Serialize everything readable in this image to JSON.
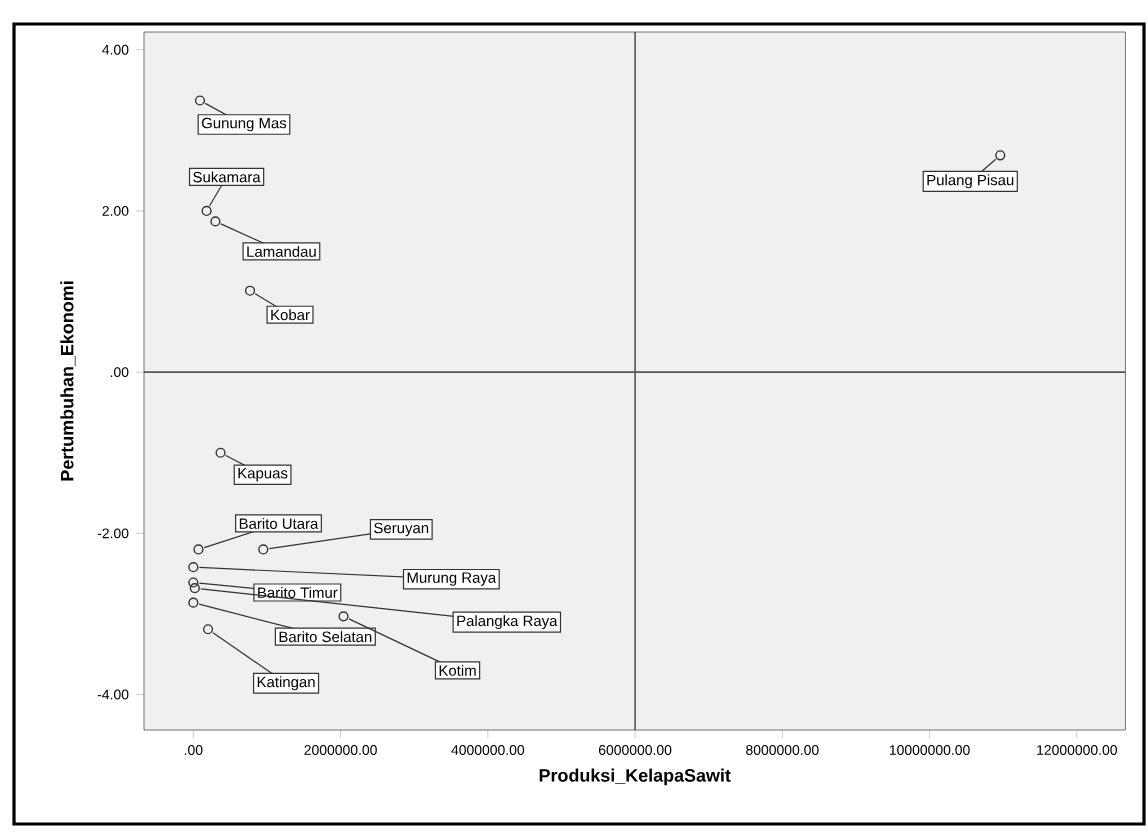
{
  "chart_data": {
    "type": "scatter",
    "xlabel": "Produksi_KelapaSawit",
    "ylabel": "Pertumbuhan_Ekonomi",
    "x": [
      90000,
      180000,
      300000,
      770000,
      370000,
      70000,
      950000,
      0,
      0,
      20000,
      0,
      200000,
      2040000,
      10960000
    ],
    "values": [
      3.37,
      2.0,
      1.87,
      1.01,
      -1.0,
      -2.2,
      -2.2,
      -2.42,
      -2.61,
      -2.68,
      -2.86,
      -3.19,
      -3.03,
      2.69
    ],
    "color": "#333333",
    "marker": "circle",
    "grid": false,
    "xlim": [
      -670000,
      12660000
    ],
    "ylim": [
      -4.44,
      4.22
    ],
    "xticks": [
      {
        "value": 0,
        "label": ".00"
      },
      {
        "value": 2000000,
        "label": "2000000.00"
      },
      {
        "value": 4000000,
        "label": "4000000.00"
      },
      {
        "value": 6000000,
        "label": "6000000.00"
      },
      {
        "value": 8000000,
        "label": "8000000.00"
      },
      {
        "value": 10000000,
        "label": "10000000.00"
      },
      {
        "value": 12000000,
        "label": "12000000.00"
      }
    ],
    "yticks": [
      {
        "value": -4,
        "label": "-4.00"
      },
      {
        "value": -2,
        "label": "-2.00"
      },
      {
        "value": 0,
        "label": ".00"
      },
      {
        "value": 2,
        "label": "2.00"
      },
      {
        "value": 4,
        "label": "4.00"
      }
    ],
    "ref_lines": [
      {
        "axis": "x",
        "value": 6000000,
        "color": "#555555"
      },
      {
        "axis": "y",
        "value": 0,
        "color": "#555555"
      }
    ],
    "annotations": [
      {
        "text": "Gunung Mas",
        "x": 90000,
        "y": 3.37
      },
      {
        "text": "Sukamara",
        "x": 180000,
        "y": 2.0
      },
      {
        "text": "Lamandau",
        "x": 300000,
        "y": 1.87
      },
      {
        "text": "Kobar",
        "x": 770000,
        "y": 1.01
      },
      {
        "text": "Kapuas",
        "x": 370000,
        "y": -1.0
      },
      {
        "text": "Barito Utara",
        "x": 70000,
        "y": -2.2
      },
      {
        "text": "Seruyan",
        "x": 950000,
        "y": -2.2
      },
      {
        "text": "Murung Raya",
        "x": 0,
        "y": -2.42
      },
      {
        "text": "Barito Timur",
        "x": 0,
        "y": -2.61
      },
      {
        "text": "Palangka Raya",
        "x": 20000,
        "y": -2.68
      },
      {
        "text": "Barito Selatan",
        "x": 0,
        "y": -2.86
      },
      {
        "text": "Katingan",
        "x": 200000,
        "y": -3.19
      },
      {
        "text": "Kotim",
        "x": 2040000,
        "y": -3.03
      },
      {
        "text": "Pulang Pisau",
        "x": 10960000,
        "y": 2.69
      }
    ]
  }
}
